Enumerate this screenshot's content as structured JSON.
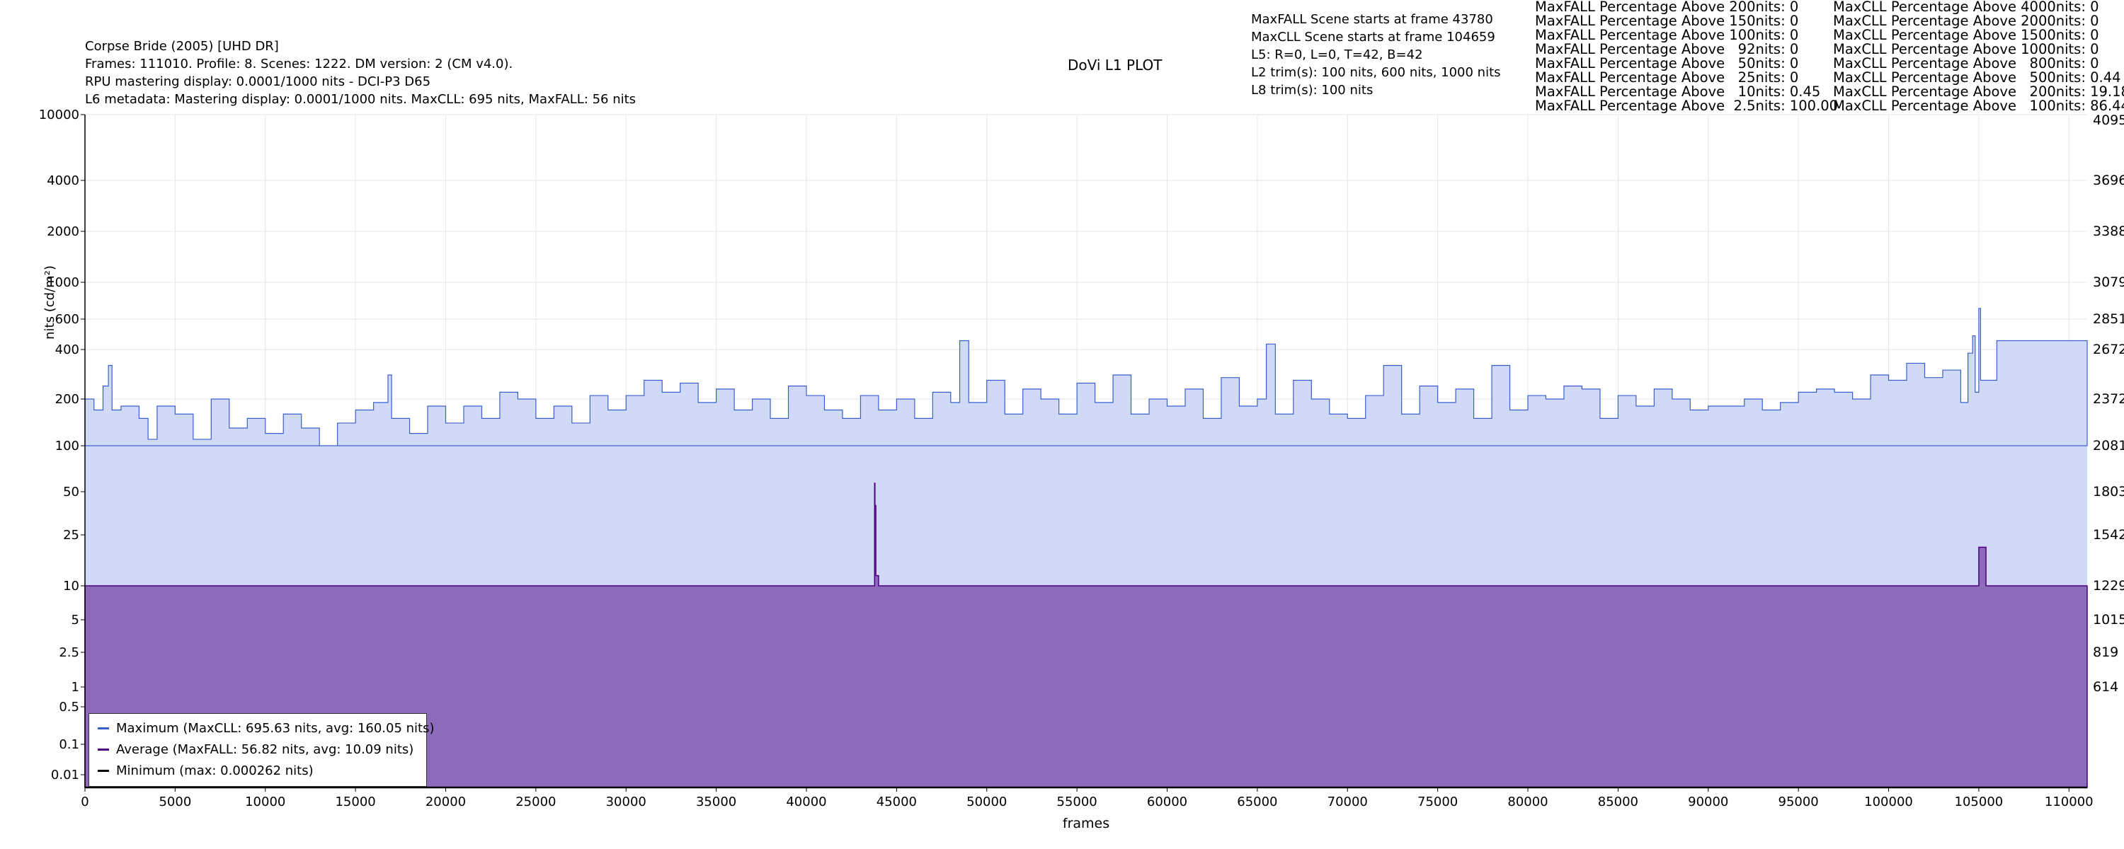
{
  "header": {
    "title": "Corpse Bride (2005) [UHD DR]",
    "line2": "Frames: 111010. Profile: 8. Scenes: 1222. DM version: 2 (CM v4.0).",
    "line3": "RPU mastering display: 0.0001/1000 nits - DCI-P3 D65",
    "line4": "L6 metadata: Mastering display: 0.0001/1000 nits. MaxCLL: 695 nits, MaxFALL: 56 nits"
  },
  "plot_title": "DoVi L1 PLOT",
  "scene_info": {
    "maxfall_scene": "MaxFALL Scene starts at frame 43780",
    "maxcll_scene": "MaxCLL Scene starts at frame 104659",
    "l5": "L5: R=0, L=0, T=42, B=42",
    "l2": "L2 trim(s): 100 nits, 600 nits, 1000 nits",
    "l8": "L8 trim(s): 100 nits"
  },
  "maxfall_percentages": [
    "MaxFALL Percentage Above 200nits: 0",
    "MaxFALL Percentage Above 150nits: 0",
    "MaxFALL Percentage Above 100nits: 0",
    "MaxFALL Percentage Above   92nits: 0",
    "MaxFALL Percentage Above   50nits: 0",
    "MaxFALL Percentage Above   25nits: 0",
    "MaxFALL Percentage Above   10nits: 0.45",
    "MaxFALL Percentage Above  2.5nits: 100.00"
  ],
  "maxcll_percentages": [
    "MaxCLL Percentage Above 4000nits: 0",
    "MaxCLL Percentage Above 2000nits: 0",
    "MaxCLL Percentage Above 1500nits: 0",
    "MaxCLL Percentage Above 1000nits: 0",
    "MaxCLL Percentage Above   800nits: 0",
    "MaxCLL Percentage Above   500nits: 0.44",
    "MaxCLL Percentage Above   200nits: 19.18",
    "MaxCLL Percentage Above   100nits: 86.44"
  ],
  "legend": {
    "maximum": "Maximum (MaxCLL: 695.63 nits, avg: 160.05 nits)",
    "average": "Average (MaxFALL: 56.82 nits, avg: 10.09 nits)",
    "minimum": "Minimum (max: 0.000262 nits)"
  },
  "colors": {
    "max_line": "#3a5fcd",
    "max_fill": "#d0daf7",
    "avg_line": "#4b0082",
    "avg_fill": "#8e6bba",
    "min_line": "#000000",
    "grid": "#e6e6e6"
  },
  "chart_data": {
    "type": "area",
    "xlabel": "frames",
    "ylabel": "nits (cd/m²)",
    "xlim": [
      0,
      111010
    ],
    "x_ticks": [
      0,
      5000,
      10000,
      15000,
      20000,
      25000,
      30000,
      35000,
      40000,
      45000,
      50000,
      55000,
      60000,
      65000,
      70000,
      75000,
      80000,
      85000,
      90000,
      95000,
      100000,
      105000,
      110000
    ],
    "y_tick_labels": [
      "0.01",
      "0.1",
      "0.5",
      "1",
      "2.5",
      "5",
      "10",
      "25",
      "50",
      "100",
      "200",
      "400",
      "600",
      "1000",
      "2000",
      "4000",
      "10000"
    ],
    "y2_tick_labels": [
      "614",
      "819",
      "1015",
      "1229",
      "1542",
      "1803",
      "2081",
      "2372",
      "2672",
      "2851",
      "3079",
      "3388",
      "3696",
      "4095"
    ],
    "grid": true,
    "legend_position": "bottom-left",
    "series": [
      {
        "name": "Maximum (MaxCLL: 695.63 nits, avg: 160.05 nits)",
        "baseline_nits": 100,
        "x": [
          0,
          500,
          1000,
          1300,
          1500,
          2000,
          3000,
          3500,
          4000,
          5000,
          6000,
          7000,
          8000,
          9000,
          10000,
          11000,
          12000,
          13000,
          14000,
          15000,
          16000,
          16800,
          17000,
          18000,
          19000,
          20000,
          21000,
          22000,
          23000,
          24000,
          25000,
          26000,
          27000,
          28000,
          29000,
          30000,
          31000,
          32000,
          33000,
          34000,
          35000,
          36000,
          37000,
          38000,
          39000,
          40000,
          41000,
          42000,
          43000,
          44000,
          45000,
          46000,
          47000,
          48000,
          48500,
          49000,
          50000,
          51000,
          52000,
          53000,
          54000,
          55000,
          56000,
          57000,
          58000,
          59000,
          60000,
          61000,
          62000,
          63000,
          64000,
          65000,
          65500,
          66000,
          67000,
          68000,
          69000,
          70000,
          71000,
          72000,
          73000,
          74000,
          75000,
          76000,
          77000,
          78000,
          79000,
          80000,
          81000,
          82000,
          83000,
          84000,
          85000,
          86000,
          87000,
          88000,
          89000,
          90000,
          91000,
          92000,
          93000,
          94000,
          95000,
          96000,
          97000,
          98000,
          99000,
          100000,
          101000,
          102000,
          103000,
          104000,
          104400,
          104659,
          104800,
          105000,
          105100,
          106000,
          108000,
          111010
        ],
        "y": [
          200,
          170,
          240,
          320,
          170,
          180,
          150,
          110,
          180,
          160,
          110,
          200,
          130,
          150,
          120,
          160,
          130,
          100,
          140,
          170,
          190,
          280,
          150,
          120,
          180,
          140,
          180,
          150,
          220,
          200,
          150,
          180,
          140,
          210,
          170,
          210,
          260,
          220,
          250,
          190,
          230,
          170,
          200,
          150,
          240,
          210,
          170,
          150,
          210,
          170,
          200,
          150,
          220,
          190,
          450,
          190,
          260,
          160,
          230,
          200,
          160,
          250,
          190,
          280,
          160,
          200,
          180,
          230,
          150,
          270,
          180,
          200,
          430,
          160,
          260,
          200,
          160,
          150,
          210,
          320,
          160,
          240,
          190,
          230,
          150,
          320,
          170,
          210,
          200,
          240,
          230,
          150,
          210,
          180,
          230,
          200,
          170,
          180,
          180,
          200,
          170,
          190,
          220,
          230,
          220,
          200,
          280,
          260,
          330,
          270,
          300,
          190,
          380,
          480,
          220,
          695.63,
          260,
          450,
          450,
          450
        ]
      },
      {
        "name": "Average (MaxFALL: 56.82 nits, avg: 10.09 nits)",
        "x": [
          0,
          43750,
          43780,
          43800,
          43850,
          44000,
          104800,
          105000,
          105100,
          105300,
          105400,
          111010
        ],
        "y": [
          10,
          10,
          56.82,
          40,
          12,
          10,
          10,
          20,
          20,
          20,
          10,
          10
        ]
      },
      {
        "name": "Minimum (max: 0.000262 nits)",
        "x": [
          0,
          111010
        ],
        "y": [
          0.000262,
          0.000262
        ]
      }
    ]
  }
}
